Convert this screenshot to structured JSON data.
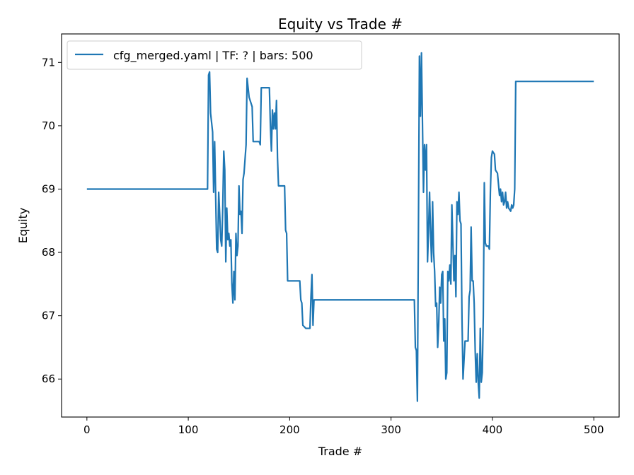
{
  "chart_data": {
    "type": "line",
    "title": "Equity vs Trade #",
    "xlabel": "Trade #",
    "ylabel": "Equity",
    "xlim": [
      -25,
      525
    ],
    "ylim": [
      65.4,
      71.45
    ],
    "xticks": [
      0,
      100,
      200,
      300,
      400,
      500
    ],
    "yticks": [
      66,
      67,
      68,
      69,
      70,
      71
    ],
    "grid": false,
    "legend_position": "top-left",
    "series": [
      {
        "name": "cfg_merged.yaml | TF: ? | bars: 500",
        "color": "#1f77b4",
        "points": [
          [
            0,
            69.0
          ],
          [
            119,
            69.0
          ],
          [
            120,
            70.8
          ],
          [
            121,
            70.85
          ],
          [
            122,
            70.2
          ],
          [
            124,
            69.9
          ],
          [
            125,
            68.95
          ],
          [
            126,
            69.75
          ],
          [
            127,
            68.9
          ],
          [
            128,
            68.05
          ],
          [
            129,
            68.0
          ],
          [
            130,
            68.95
          ],
          [
            131,
            68.6
          ],
          [
            132,
            68.2
          ],
          [
            133,
            68.1
          ],
          [
            134,
            68.7
          ],
          [
            135,
            69.6
          ],
          [
            136,
            69.3
          ],
          [
            137,
            67.85
          ],
          [
            138,
            68.7
          ],
          [
            139,
            68.2
          ],
          [
            140,
            68.3
          ],
          [
            141,
            68.1
          ],
          [
            142,
            68.2
          ],
          [
            143,
            67.5
          ],
          [
            144,
            67.2
          ],
          [
            145,
            67.7
          ],
          [
            146,
            67.25
          ],
          [
            147,
            68.3
          ],
          [
            148,
            67.95
          ],
          [
            149,
            68.1
          ],
          [
            150,
            69.05
          ],
          [
            151,
            68.6
          ],
          [
            152,
            68.65
          ],
          [
            153,
            68.3
          ],
          [
            154,
            69.15
          ],
          [
            155,
            69.25
          ],
          [
            157,
            69.7
          ],
          [
            158,
            70.75
          ],
          [
            160,
            70.45
          ],
          [
            163,
            70.3
          ],
          [
            164,
            69.75
          ],
          [
            170,
            69.75
          ],
          [
            171,
            69.7
          ],
          [
            172,
            70.6
          ],
          [
            180,
            70.6
          ],
          [
            181,
            70.0
          ],
          [
            182,
            69.6
          ],
          [
            183,
            70.25
          ],
          [
            184,
            69.95
          ],
          [
            185,
            70.2
          ],
          [
            186,
            69.95
          ],
          [
            187,
            70.4
          ],
          [
            188,
            69.5
          ],
          [
            189,
            69.05
          ],
          [
            195,
            69.05
          ],
          [
            196,
            68.35
          ],
          [
            197,
            68.3
          ],
          [
            198,
            67.55
          ],
          [
            210,
            67.55
          ],
          [
            211,
            67.25
          ],
          [
            212,
            67.2
          ],
          [
            213,
            66.85
          ],
          [
            216,
            66.8
          ],
          [
            220,
            66.8
          ],
          [
            221,
            67.3
          ],
          [
            222,
            67.65
          ],
          [
            223,
            66.85
          ],
          [
            224,
            67.25
          ],
          [
            323,
            67.25
          ],
          [
            324,
            66.5
          ],
          [
            325,
            66.45
          ],
          [
            326,
            65.65
          ],
          [
            327,
            68.3
          ],
          [
            328,
            71.1
          ],
          [
            329,
            70.15
          ],
          [
            330,
            71.15
          ],
          [
            331,
            70.05
          ],
          [
            332,
            68.95
          ],
          [
            333,
            69.7
          ],
          [
            334,
            69.3
          ],
          [
            335,
            69.7
          ],
          [
            336,
            67.85
          ],
          [
            337,
            68.35
          ],
          [
            338,
            68.95
          ],
          [
            339,
            68.3
          ],
          [
            340,
            67.85
          ],
          [
            341,
            68.8
          ],
          [
            342,
            68.0
          ],
          [
            343,
            67.7
          ],
          [
            344,
            67.15
          ],
          [
            345,
            67.2
          ],
          [
            346,
            66.5
          ],
          [
            347,
            66.85
          ],
          [
            348,
            67.45
          ],
          [
            349,
            67.2
          ],
          [
            350,
            67.65
          ],
          [
            351,
            67.7
          ],
          [
            352,
            66.6
          ],
          [
            353,
            66.95
          ],
          [
            354,
            66.0
          ],
          [
            355,
            66.1
          ],
          [
            356,
            67.7
          ],
          [
            357,
            67.55
          ],
          [
            358,
            67.8
          ],
          [
            359,
            67.5
          ],
          [
            360,
            68.75
          ],
          [
            361,
            68.15
          ],
          [
            362,
            67.55
          ],
          [
            363,
            67.95
          ],
          [
            364,
            67.3
          ],
          [
            365,
            68.8
          ],
          [
            366,
            68.6
          ],
          [
            367,
            68.95
          ],
          [
            368,
            68.5
          ],
          [
            369,
            68.45
          ],
          [
            370,
            66.95
          ],
          [
            371,
            66.0
          ],
          [
            372,
            66.3
          ],
          [
            373,
            66.6
          ],
          [
            376,
            66.6
          ],
          [
            377,
            67.3
          ],
          [
            378,
            67.4
          ],
          [
            379,
            68.4
          ],
          [
            380,
            67.55
          ],
          [
            381,
            67.55
          ],
          [
            382,
            67.2
          ],
          [
            383,
            66.45
          ],
          [
            384,
            65.95
          ],
          [
            385,
            66.4
          ],
          [
            386,
            65.95
          ],
          [
            387,
            65.7
          ],
          [
            388,
            66.8
          ],
          [
            389,
            65.95
          ],
          [
            390,
            66.1
          ],
          [
            391,
            67.0
          ],
          [
            392,
            69.1
          ],
          [
            393,
            68.15
          ],
          [
            394,
            68.1
          ],
          [
            396,
            68.1
          ],
          [
            397,
            68.05
          ],
          [
            398,
            68.95
          ],
          [
            399,
            69.5
          ],
          [
            400,
            69.6
          ],
          [
            402,
            69.55
          ],
          [
            403,
            69.3
          ],
          [
            405,
            69.25
          ],
          [
            407,
            68.9
          ],
          [
            408,
            69.0
          ],
          [
            409,
            68.8
          ],
          [
            410,
            68.95
          ],
          [
            411,
            68.75
          ],
          [
            412,
            68.8
          ],
          [
            413,
            68.95
          ],
          [
            414,
            68.7
          ],
          [
            415,
            68.8
          ],
          [
            416,
            68.7
          ],
          [
            418,
            68.65
          ],
          [
            419,
            68.75
          ],
          [
            420,
            68.7
          ],
          [
            421,
            68.75
          ],
          [
            422,
            69.0
          ],
          [
            423,
            70.7
          ],
          [
            500,
            70.7
          ]
        ]
      }
    ]
  }
}
